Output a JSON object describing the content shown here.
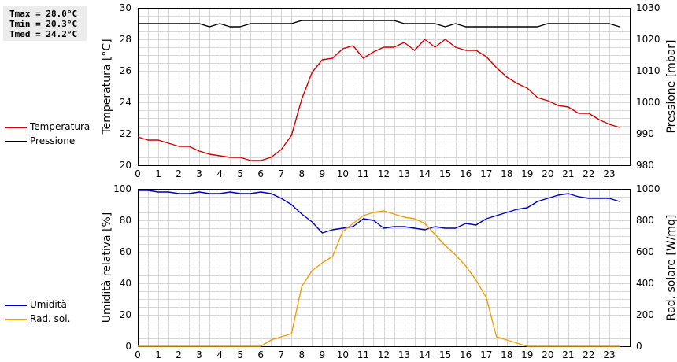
{
  "stats": {
    "tmax": "Tmax = 28.0°C",
    "tmin": "Tmin = 20.3°C",
    "tmed": "Tmed = 24.2°C"
  },
  "legend_top": [
    {
      "label": "Temperatura",
      "color": "#d40000"
    },
    {
      "label": "Pressione",
      "color": "#000000"
    }
  ],
  "legend_bottom": [
    {
      "label": "Umidità",
      "color": "#0000c0"
    },
    {
      "label": "Rad. sol.",
      "color": "#f0a000"
    }
  ],
  "chart_data": [
    {
      "type": "line",
      "ylabel": "Temperatura [°C]",
      "y2label": "Pressione [mbar]",
      "xlim": [
        0,
        24
      ],
      "ylim": [
        20,
        30
      ],
      "y2lim": [
        980,
        1030
      ],
      "xticks": [
        0,
        1,
        2,
        3,
        4,
        5,
        6,
        7,
        8,
        9,
        10,
        11,
        12,
        13,
        14,
        15,
        16,
        17,
        18,
        19,
        20,
        21,
        22,
        23
      ],
      "yticks": [
        20,
        22,
        24,
        26,
        28,
        30
      ],
      "y2ticks": [
        980,
        990,
        1000,
        1010,
        1020,
        1030
      ],
      "grid": true,
      "series": [
        {
          "name": "Temperatura",
          "color": "#d40000",
          "axis": "left",
          "x": [
            0,
            0.5,
            1,
            1.5,
            2,
            2.5,
            3,
            3.5,
            4,
            4.5,
            5,
            5.5,
            6,
            6.5,
            7,
            7.5,
            8,
            8.5,
            9,
            9.5,
            10,
            10.5,
            11,
            11.5,
            12,
            12.5,
            13,
            13.5,
            14,
            14.5,
            15,
            15.5,
            16,
            16.5,
            17,
            17.5,
            18,
            18.5,
            19,
            19.5,
            20,
            20.5,
            21,
            21.5,
            22,
            22.5,
            23,
            23.5
          ],
          "y": [
            21.8,
            21.6,
            21.6,
            21.4,
            21.2,
            21.2,
            20.9,
            20.7,
            20.6,
            20.5,
            20.5,
            20.3,
            20.3,
            20.5,
            21.0,
            21.9,
            24.2,
            25.9,
            26.7,
            26.8,
            27.4,
            27.6,
            26.8,
            27.2,
            27.5,
            27.5,
            27.8,
            27.3,
            28.0,
            27.5,
            28.0,
            27.5,
            27.3,
            27.3,
            26.9,
            26.2,
            25.6,
            25.2,
            24.9,
            24.3,
            24.1,
            23.8,
            23.7,
            23.3,
            23.3,
            22.9,
            22.6,
            22.4
          ]
        },
        {
          "name": "Pressione",
          "color": "#000000",
          "axis": "right",
          "x": [
            0,
            0.5,
            1,
            1.5,
            2,
            2.5,
            3,
            3.5,
            4,
            4.5,
            5,
            5.5,
            6,
            6.5,
            7,
            7.5,
            8,
            8.5,
            9,
            9.5,
            10,
            10.5,
            11,
            11.5,
            12,
            12.5,
            13,
            13.5,
            14,
            14.5,
            15,
            15.5,
            16,
            16.5,
            17,
            17.5,
            18,
            18.5,
            19,
            19.5,
            20,
            20.5,
            21,
            21.5,
            22,
            22.5,
            23,
            23.5
          ],
          "y": [
            1025,
            1025,
            1025,
            1025,
            1025,
            1025,
            1025,
            1024,
            1025,
            1024,
            1024,
            1025,
            1025,
            1025,
            1025,
            1025,
            1026,
            1026,
            1026,
            1026,
            1026,
            1026,
            1026,
            1026,
            1026,
            1026,
            1025,
            1025,
            1025,
            1025,
            1024,
            1025,
            1024,
            1024,
            1024,
            1024,
            1024,
            1024,
            1024,
            1024,
            1025,
            1025,
            1025,
            1025,
            1025,
            1025,
            1025,
            1024
          ]
        }
      ]
    },
    {
      "type": "line",
      "ylabel": "Umidità relativa [%]",
      "y2label": "Rad. solare [W/mq]",
      "xlim": [
        0,
        24
      ],
      "ylim": [
        0,
        100
      ],
      "y2lim": [
        0,
        1000
      ],
      "xticks": [
        0,
        1,
        2,
        3,
        4,
        5,
        6,
        7,
        8,
        9,
        10,
        11,
        12,
        13,
        14,
        15,
        16,
        17,
        18,
        19,
        20,
        21,
        22,
        23
      ],
      "yticks": [
        0,
        20,
        40,
        60,
        80,
        100
      ],
      "y2ticks": [
        0,
        200,
        400,
        600,
        800,
        1000
      ],
      "grid": true,
      "series": [
        {
          "name": "Umidità",
          "color": "#0000c0",
          "axis": "left",
          "x": [
            0,
            0.5,
            1,
            1.5,
            2,
            2.5,
            3,
            3.5,
            4,
            4.5,
            5,
            5.5,
            6,
            6.5,
            7,
            7.5,
            8,
            8.5,
            9,
            9.5,
            10,
            10.5,
            11,
            11.5,
            12,
            12.5,
            13,
            13.5,
            14,
            14.5,
            15,
            15.5,
            16,
            16.5,
            17,
            17.5,
            18,
            18.5,
            19,
            19.5,
            20,
            20.5,
            21,
            21.5,
            22,
            22.5,
            23,
            23.5
          ],
          "y": [
            99,
            99,
            98,
            98,
            97,
            97,
            98,
            97,
            97,
            98,
            97,
            97,
            98,
            97,
            94,
            90,
            84,
            79,
            72,
            74,
            75,
            76,
            81,
            80,
            75,
            76,
            76,
            75,
            74,
            76,
            75,
            75,
            78,
            77,
            81,
            83,
            85,
            87,
            88,
            92,
            94,
            96,
            97,
            95,
            94,
            94,
            94,
            92
          ]
        },
        {
          "name": "Rad. sol.",
          "color": "#f0a000",
          "axis": "right",
          "x": [
            0,
            0.5,
            1,
            1.5,
            2,
            2.5,
            3,
            3.5,
            4,
            4.5,
            5,
            5.5,
            6,
            6.5,
            7,
            7.5,
            8,
            8.5,
            9,
            9.5,
            10,
            10.5,
            11,
            11.5,
            12,
            12.5,
            13,
            13.5,
            14,
            14.5,
            15,
            15.5,
            16,
            16.5,
            17,
            17.5,
            18,
            18.5,
            19,
            19.5,
            20,
            20.5,
            21,
            21.5,
            22,
            22.5,
            23,
            23.5
          ],
          "y": [
            0,
            0,
            0,
            0,
            0,
            0,
            0,
            0,
            0,
            0,
            0,
            0,
            0,
            40,
            60,
            80,
            380,
            480,
            530,
            570,
            730,
            780,
            830,
            850,
            860,
            840,
            820,
            810,
            780,
            710,
            640,
            580,
            510,
            420,
            310,
            60,
            40,
            20,
            0,
            0,
            0,
            0,
            0,
            0,
            0,
            0,
            0,
            0
          ]
        }
      ]
    }
  ]
}
